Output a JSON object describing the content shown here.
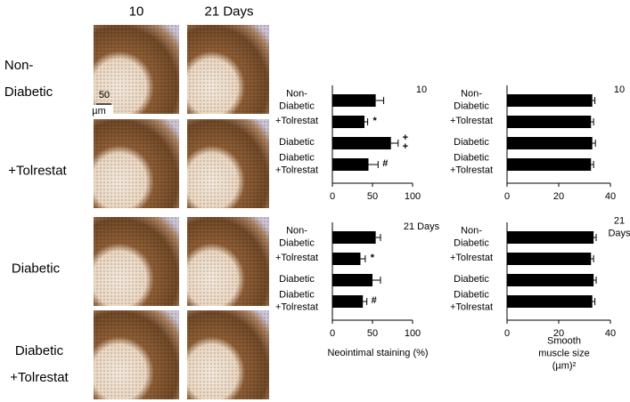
{
  "figure": {
    "columns": [
      "10",
      "21 Days"
    ],
    "rows": [
      "Non-\nDiabetic",
      "+Tolrestat",
      "Diabetic",
      "Diabetic\n+Tolrestat"
    ],
    "scale_bar": "50",
    "scale_unit": "µm"
  },
  "chart_data": [
    {
      "type": "bar",
      "orientation": "horizontal",
      "title": "10",
      "color": "#000000",
      "categories": [
        "Non-\nDiabetic",
        "+Tolrestat",
        "Diabetic",
        "Diabetic\n+Tolrestat"
      ],
      "values": [
        54,
        40,
        73,
        45
      ],
      "errors": [
        10,
        4,
        9,
        12
      ],
      "markers": [
        null,
        "*",
        "+\n+",
        "#"
      ],
      "xlim": [
        0,
        100
      ],
      "xticks": [
        0,
        50,
        100
      ]
    },
    {
      "type": "bar",
      "orientation": "horizontal",
      "title": "10",
      "color": "#000000",
      "categories": [
        "Non-\nDiabetic",
        "+Tolrestat",
        "Diabetic",
        "Diabetic\n+Tolrestat"
      ],
      "values": [
        33,
        32.5,
        33,
        32.5
      ],
      "errors": [
        1,
        1,
        1.2,
        1
      ],
      "xlim": [
        0,
        40
      ],
      "xticks": [
        0,
        20,
        40
      ]
    },
    {
      "type": "bar",
      "orientation": "horizontal",
      "title": "21 Days",
      "color": "#000000",
      "categories": [
        "Non-\nDiabetic",
        "+Tolrestat",
        "Diabetic",
        "Diabetic\n+Tolrestat"
      ],
      "values": [
        54,
        35,
        50,
        38
      ],
      "errors": [
        6,
        6,
        10,
        5
      ],
      "markers": [
        null,
        "*",
        null,
        "#"
      ],
      "xlim": [
        0,
        100
      ],
      "xticks": [
        0,
        50,
        100
      ],
      "xlabel": "Neointimal staining (%)"
    },
    {
      "type": "bar",
      "orientation": "horizontal",
      "title": "21 Days",
      "color": "#000000",
      "categories": [
        "Non-\nDiabetic",
        "+Tolrestat",
        "Diabetic",
        "Diabetic\n+Tolrestat"
      ],
      "values": [
        33.5,
        32.5,
        33.5,
        33
      ],
      "errors": [
        1,
        1,
        1,
        1
      ],
      "xlim": [
        0,
        40
      ],
      "xticks": [
        0,
        20,
        40
      ],
      "xlabel": "Smooth muscle size (µm)²"
    }
  ]
}
